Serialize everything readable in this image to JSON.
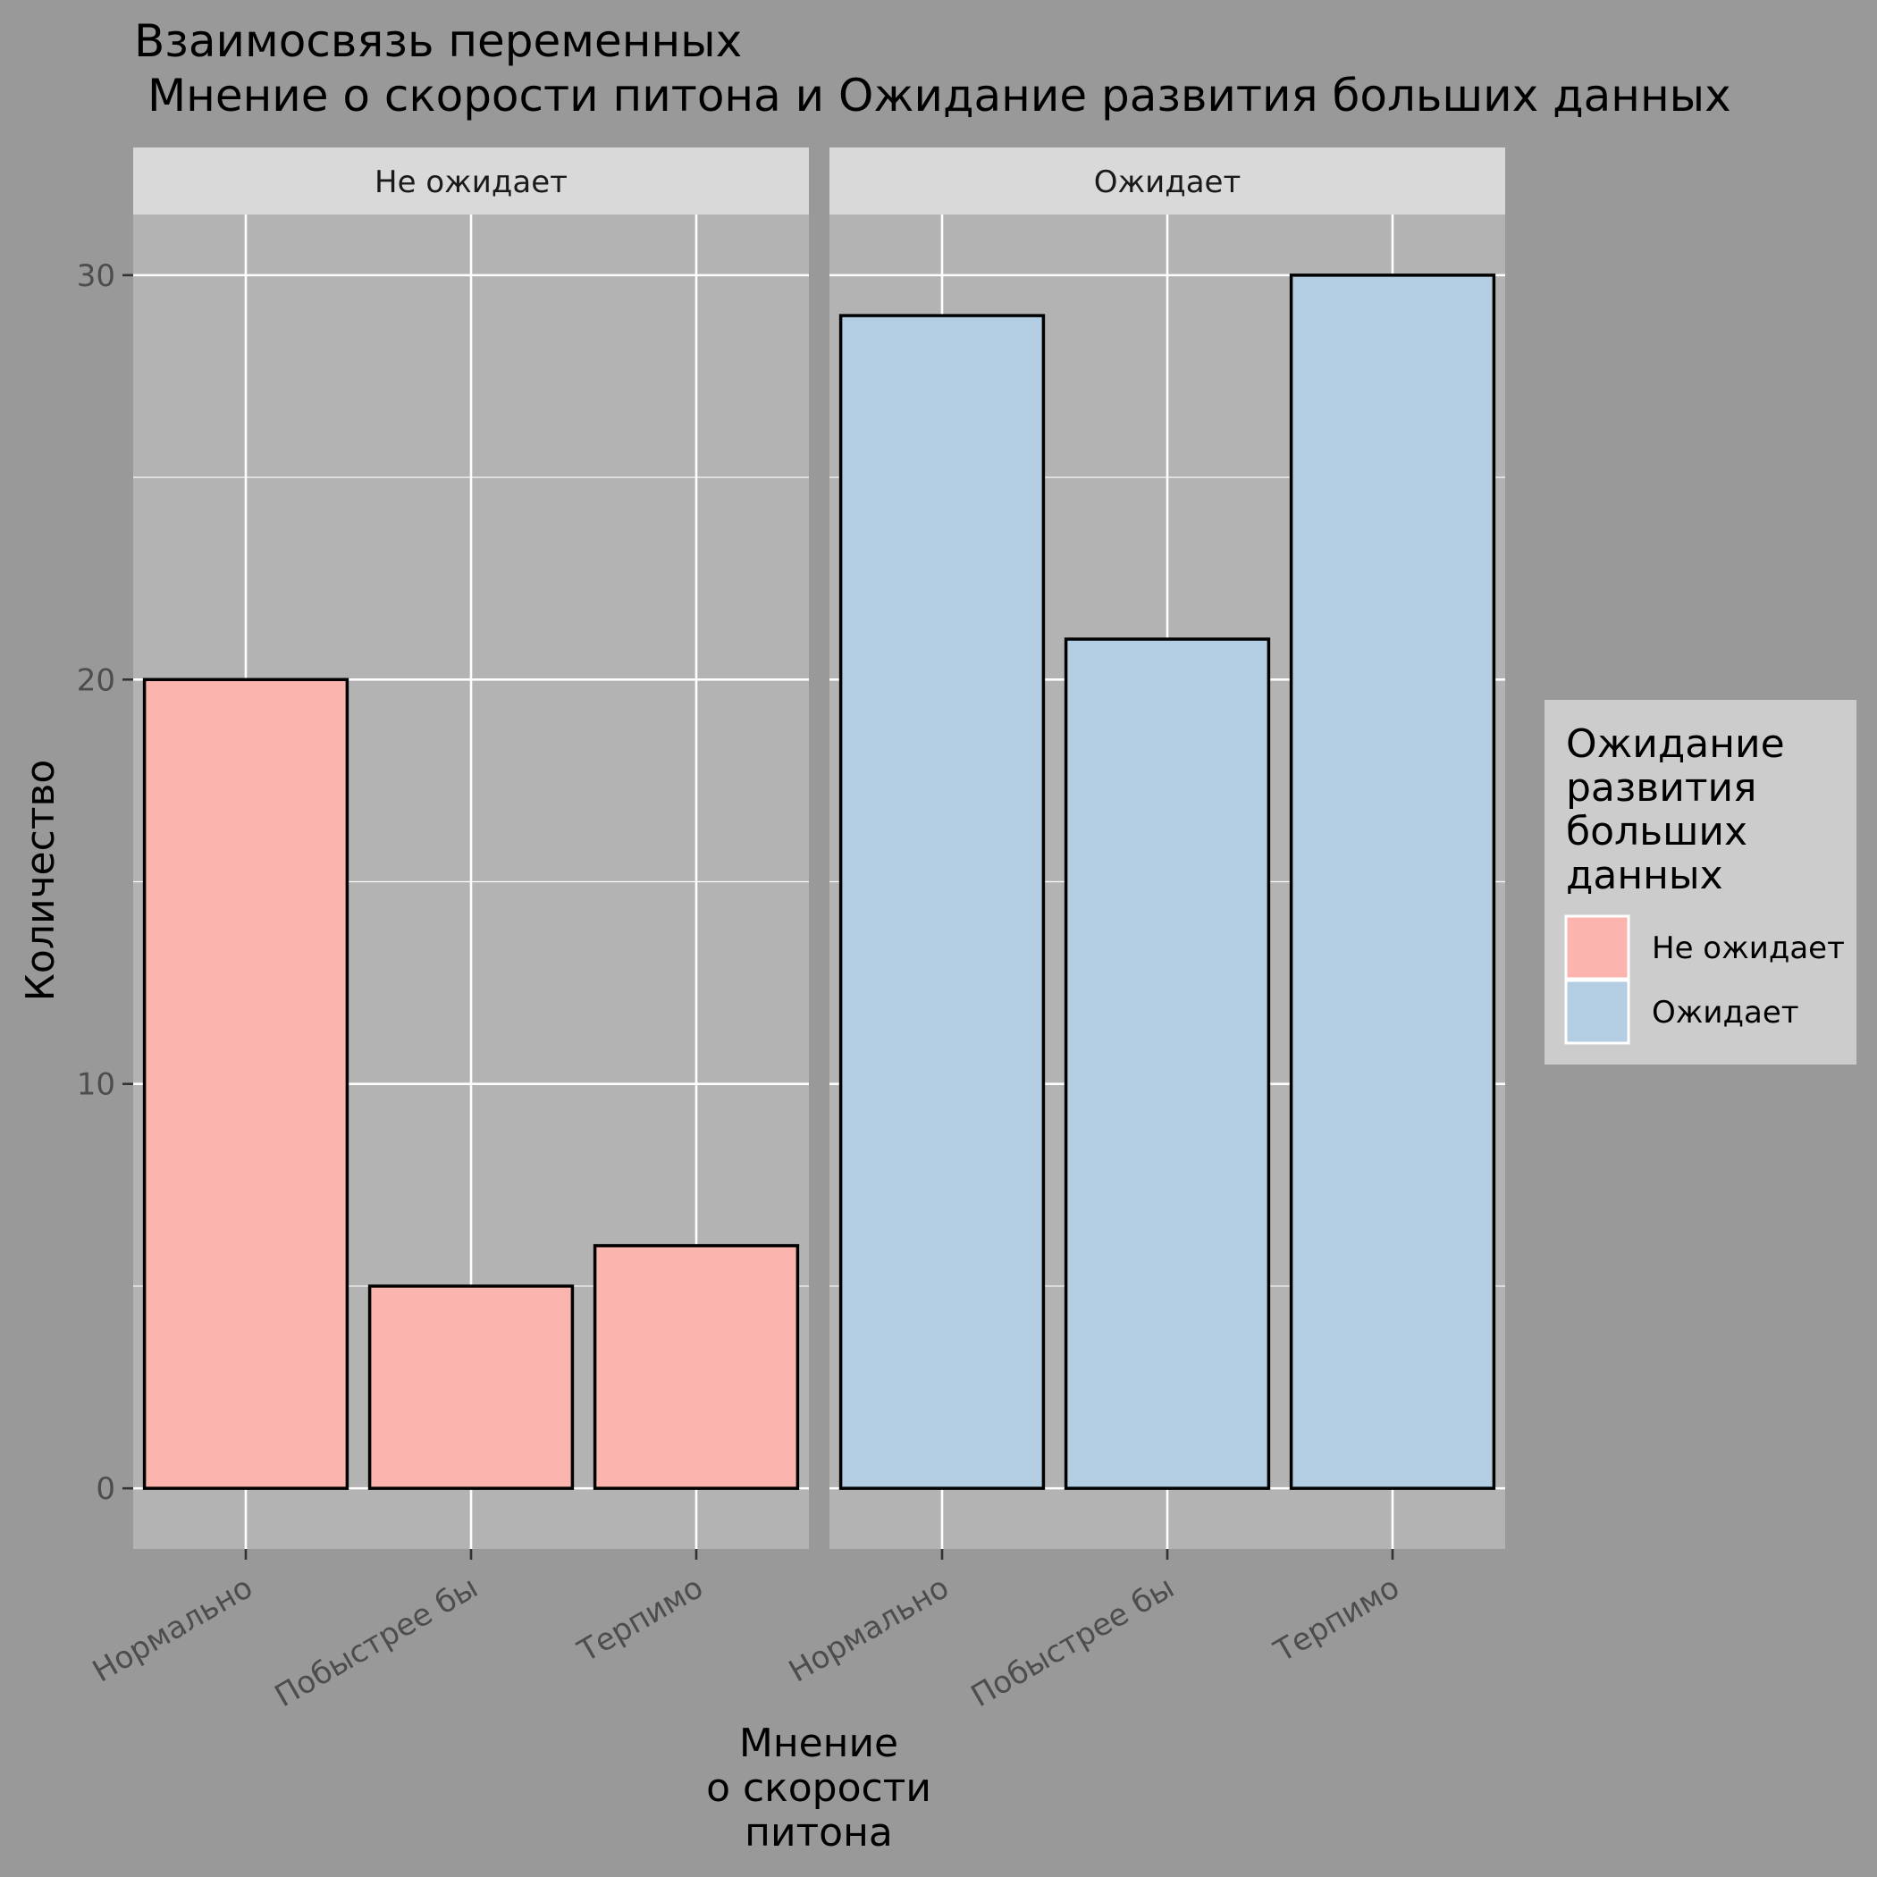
{
  "chart_data": {
    "type": "bar",
    "title_lines": [
      "Взаимосвязь переменных",
      "Мнение о скорости питона и Ожидание развития больших данных"
    ],
    "xlabel_lines": [
      "Мнение",
      "о скорости",
      "питона"
    ],
    "ylabel": "Количество",
    "ylim": [
      -1.5,
      31.5
    ],
    "yticks": [
      0,
      10,
      20,
      30
    ],
    "categories": [
      "Нормально",
      "Побыстрее бы",
      "Терпимо"
    ],
    "panels": [
      {
        "name": "Не ожидает",
        "fill": "#FBB4AE",
        "values": [
          20,
          5,
          6
        ]
      },
      {
        "name": "Ожидает",
        "fill": "#B3CDE3",
        "values": [
          29,
          21,
          30
        ]
      }
    ],
    "legend": {
      "title_lines": [
        "Ожидание",
        "развития",
        "больших",
        "данных"
      ],
      "entries": [
        {
          "label": "Не ожидает",
          "fill": "#FBB4AE"
        },
        {
          "label": "Ожидает",
          "fill": "#B3CDE3"
        }
      ],
      "position": "right"
    },
    "colors": {
      "plot_background": "#B3B3B3",
      "page_background": "#999999",
      "strip_background": "#D9D9D9",
      "legend_background": "#CCCCCC",
      "grid": "#FFFFFF",
      "bar_outline": "#000000"
    }
  }
}
